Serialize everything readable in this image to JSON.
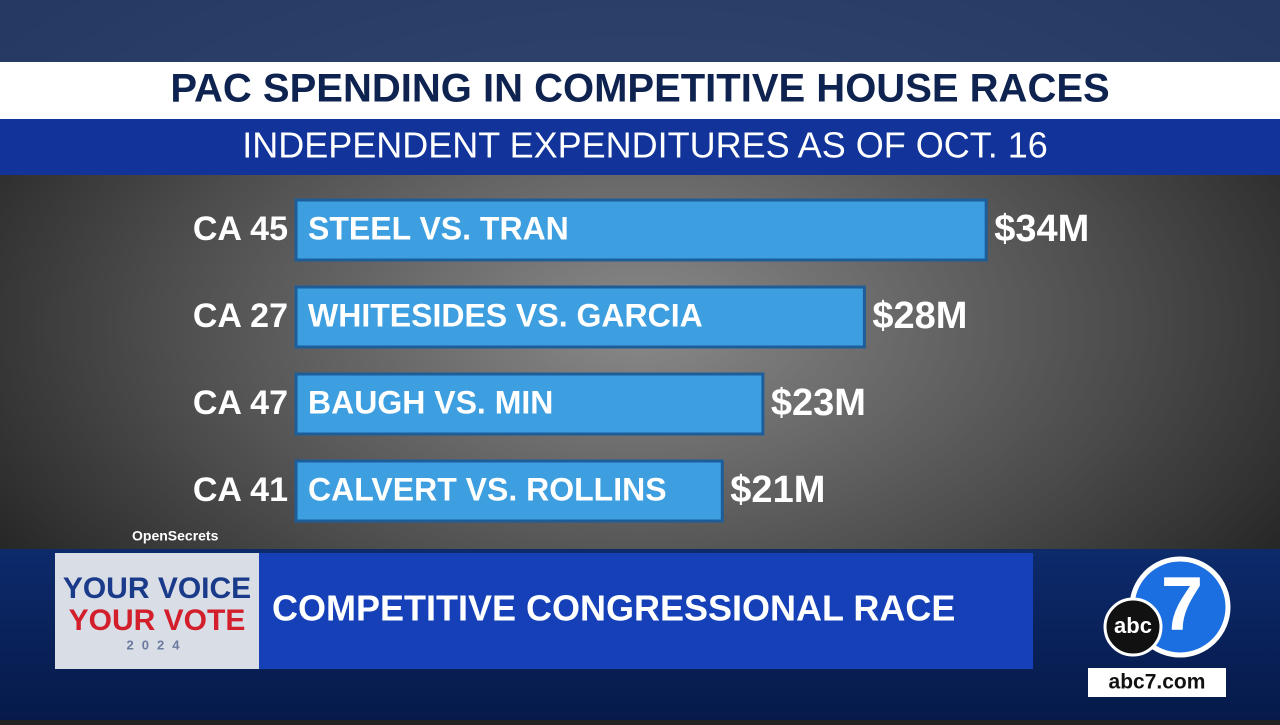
{
  "chart_data": {
    "type": "hbar",
    "title": "PAC SPENDING IN COMPETITIVE HOUSE RACES",
    "subtitle": "INDEPENDENT EXPENDITURES AS OF OCT. 16",
    "categories": [
      "CA 45",
      "CA 27",
      "CA 47",
      "CA 41"
    ],
    "races": [
      "STEEL VS. TRAN",
      "WHITESIDES VS. GARCIA",
      "BAUGH VS. MIN",
      "CALVERT VS. ROLLINS"
    ],
    "values": [
      34,
      28,
      23,
      21
    ],
    "value_labels": [
      "$34M",
      "$28M",
      "$23M",
      "$21M"
    ],
    "color": "#3d9ee0",
    "source": "OpenSecrets"
  },
  "broadcast": {
    "logo_line1": "YOUR VOICE",
    "logo_line2": "YOUR VOTE",
    "logo_year": "2024",
    "banner": "COMPETITIVE CONGRESSIONAL RACE",
    "station_abc": "abc",
    "station_number": "7",
    "website": "abc7.com"
  }
}
